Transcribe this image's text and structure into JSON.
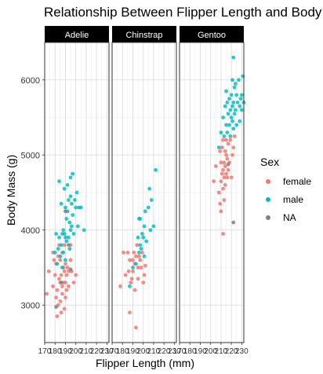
{
  "chart_data": {
    "type": "scatter",
    "title": "Relationship Between Flipper Length and Body Mass",
    "xlabel": "Flipper Length (mm)",
    "ylabel": "Body Mass (g)",
    "facets": [
      "Adelie",
      "Chinstrap",
      "Gentoo"
    ],
    "xlim": [
      170,
      232
    ],
    "ylim": [
      2500,
      6500
    ],
    "x_ticks": [
      170,
      180,
      190,
      200,
      210,
      220,
      230
    ],
    "x_tick_labels": [
      "170",
      "180",
      "190",
      "200",
      "210",
      "220",
      "230"
    ],
    "y_ticks": [
      3000,
      4000,
      5000,
      6000
    ],
    "y_tick_labels": [
      "3000",
      "4000",
      "5000",
      "6000"
    ],
    "legend": {
      "title": "Sex",
      "position": "right",
      "entries": [
        {
          "label": "female",
          "color": "#F8766D"
        },
        {
          "label": "male",
          "color": "#00BFC4"
        },
        {
          "label": "NA",
          "color": "#7F7F7F"
        }
      ]
    },
    "grid": true,
    "series": [
      {
        "facet": "Adelie",
        "name": "female",
        "color": "#F8766D",
        "points": [
          [
            172,
            3150
          ],
          [
            174,
            3450
          ],
          [
            178,
            3700
          ],
          [
            178,
            3250
          ],
          [
            179,
            3600
          ],
          [
            180,
            3400
          ],
          [
            181,
            3100
          ],
          [
            181,
            3550
          ],
          [
            182,
            3200
          ],
          [
            182,
            2850
          ],
          [
            183,
            3000
          ],
          [
            183,
            3650
          ],
          [
            184,
            3350
          ],
          [
            184,
            3800
          ],
          [
            185,
            3300
          ],
          [
            185,
            3050
          ],
          [
            185,
            3600
          ],
          [
            186,
            3400
          ],
          [
            186,
            2900
          ],
          [
            187,
            3150
          ],
          [
            187,
            3250
          ],
          [
            187,
            3700
          ],
          [
            188,
            3500
          ],
          [
            188,
            3300
          ],
          [
            189,
            3450
          ],
          [
            189,
            2950
          ],
          [
            189,
            3800
          ],
          [
            190,
            3300
          ],
          [
            190,
            3550
          ],
          [
            190,
            3100
          ],
          [
            191,
            3400
          ],
          [
            191,
            3200
          ],
          [
            192,
            3500
          ],
          [
            193,
            3250
          ],
          [
            193,
            3450
          ],
          [
            195,
            3800
          ],
          [
            195,
            3600
          ],
          [
            196,
            3450
          ],
          [
            198,
            3300
          ],
          [
            200,
            3400
          ]
        ]
      },
      {
        "facet": "Adelie",
        "name": "male",
        "color": "#00BFC4",
        "points": [
          [
            180,
            3700
          ],
          [
            181,
            3950
          ],
          [
            182,
            3550
          ],
          [
            183,
            3750
          ],
          [
            184,
            3900
          ],
          [
            184,
            4650
          ],
          [
            185,
            3650
          ],
          [
            186,
            3800
          ],
          [
            186,
            4350
          ],
          [
            187,
            3950
          ],
          [
            187,
            3500
          ],
          [
            188,
            4000
          ],
          [
            188,
            3700
          ],
          [
            189,
            3950
          ],
          [
            189,
            4550
          ],
          [
            190,
            3600
          ],
          [
            190,
            3900
          ],
          [
            190,
            4300
          ],
          [
            191,
            4150
          ],
          [
            191,
            3850
          ],
          [
            192,
            4250
          ],
          [
            192,
            4600
          ],
          [
            193,
            3900
          ],
          [
            193,
            4400
          ],
          [
            194,
            4100
          ],
          [
            194,
            3750
          ],
          [
            195,
            4450
          ],
          [
            195,
            4000
          ],
          [
            195,
            4700
          ],
          [
            196,
            4350
          ],
          [
            196,
            4050
          ],
          [
            197,
            4750
          ],
          [
            197,
            4200
          ],
          [
            198,
            3950
          ],
          [
            199,
            4400
          ],
          [
            200,
            4300
          ],
          [
            201,
            4500
          ],
          [
            202,
            4050
          ],
          [
            203,
            4300
          ],
          [
            205,
            4300
          ],
          [
            208,
            4000
          ]
        ]
      },
      {
        "facet": "Adelie",
        "name": "NA",
        "color": "#7F7F7F",
        "points": [
          [
            181,
            2975
          ],
          [
            186,
            3300
          ],
          [
            190,
            4250
          ],
          [
            195,
            3475
          ],
          [
            193,
            3800
          ]
        ]
      },
      {
        "facet": "Chinstrap",
        "name": "female",
        "color": "#F8766D",
        "points": [
          [
            178,
            3250
          ],
          [
            181,
            3700
          ],
          [
            183,
            3400
          ],
          [
            185,
            3700
          ],
          [
            186,
            3450
          ],
          [
            187,
            3600
          ],
          [
            187,
            2900
          ],
          [
            188,
            3300
          ],
          [
            189,
            3350
          ],
          [
            190,
            3600
          ],
          [
            190,
            3450
          ],
          [
            191,
            3700
          ],
          [
            192,
            3550
          ],
          [
            192,
            3200
          ],
          [
            193,
            3650
          ],
          [
            193,
            2700
          ],
          [
            194,
            3800
          ],
          [
            195,
            3500
          ],
          [
            195,
            3350
          ],
          [
            196,
            3650
          ],
          [
            197,
            3600
          ],
          [
            198,
            3500
          ],
          [
            199,
            3700
          ],
          [
            200,
            3300
          ],
          [
            201,
            3400
          ],
          [
            202,
            3525
          ]
        ]
      },
      {
        "facet": "Chinstrap",
        "name": "male",
        "color": "#00BFC4",
        "points": [
          [
            187,
            3250
          ],
          [
            190,
            3500
          ],
          [
            193,
            3550
          ],
          [
            195,
            3900
          ],
          [
            196,
            4150
          ],
          [
            196,
            3700
          ],
          [
            197,
            3800
          ],
          [
            197,
            4150
          ],
          [
            198,
            3750
          ],
          [
            199,
            3950
          ],
          [
            200,
            3900
          ],
          [
            201,
            4050
          ],
          [
            201,
            3650
          ],
          [
            202,
            4250
          ],
          [
            203,
            3850
          ],
          [
            205,
            4300
          ],
          [
            206,
            4550
          ],
          [
            207,
            4000
          ],
          [
            208,
            4400
          ],
          [
            210,
            4050
          ],
          [
            212,
            4800
          ]
        ]
      },
      {
        "facet": "Gentoo",
        "name": "female",
        "color": "#F8766D",
        "points": [
          [
            203,
            4650
          ],
          [
            205,
            4850
          ],
          [
            208,
            4500
          ],
          [
            209,
            4350
          ],
          [
            209,
            5050
          ],
          [
            210,
            4650
          ],
          [
            210,
            4900
          ],
          [
            210,
            4250
          ],
          [
            211,
            4750
          ],
          [
            211,
            5100
          ],
          [
            212,
            3950
          ],
          [
            212,
            4800
          ],
          [
            212,
            5200
          ],
          [
            212,
            4550
          ],
          [
            213,
            4700
          ],
          [
            213,
            4900
          ],
          [
            213,
            4400
          ],
          [
            214,
            4850
          ],
          [
            214,
            5050
          ],
          [
            214,
            4600
          ],
          [
            215,
            5000
          ],
          [
            215,
            4750
          ],
          [
            215,
            5200
          ],
          [
            216,
            4700
          ],
          [
            216,
            4950
          ],
          [
            217,
            4800
          ],
          [
            217,
            5150
          ],
          [
            218,
            4900
          ],
          [
            219,
            5200
          ],
          [
            220,
            4700
          ],
          [
            221,
            5000
          ],
          [
            222,
            5100
          ],
          [
            223,
            5250
          ]
        ]
      },
      {
        "facet": "Gentoo",
        "name": "male",
        "color": "#00BFC4",
        "points": [
          [
            208,
            5100
          ],
          [
            210,
            5300
          ],
          [
            212,
            5500
          ],
          [
            213,
            5250
          ],
          [
            214,
            5650
          ],
          [
            215,
            5400
          ],
          [
            215,
            5850
          ],
          [
            216,
            5300
          ],
          [
            216,
            5700
          ],
          [
            217,
            5550
          ],
          [
            218,
            5400
          ],
          [
            218,
            5750
          ],
          [
            219,
            5600
          ],
          [
            219,
            5250
          ],
          [
            220,
            5800
          ],
          [
            220,
            5500
          ],
          [
            221,
            5450
          ],
          [
            221,
            6000
          ],
          [
            221,
            5650
          ],
          [
            222,
            5700
          ],
          [
            222,
            5350
          ],
          [
            222,
            6300
          ],
          [
            223,
            5900
          ],
          [
            223,
            5550
          ],
          [
            224,
            5600
          ],
          [
            224,
            5950
          ],
          [
            225,
            5400
          ],
          [
            225,
            5800
          ],
          [
            226,
            5700
          ],
          [
            227,
            6000
          ],
          [
            228,
            5650
          ],
          [
            228,
            5450
          ],
          [
            229,
            5750
          ],
          [
            230,
            5600
          ],
          [
            230,
            5800
          ],
          [
            231,
            6050
          ],
          [
            232,
            5700
          ]
        ]
      },
      {
        "facet": "Gentoo",
        "name": "NA",
        "color": "#7F7F7F",
        "points": [
          [
            217,
            4875
          ],
          [
            222,
            4100
          ]
        ]
      }
    ]
  }
}
